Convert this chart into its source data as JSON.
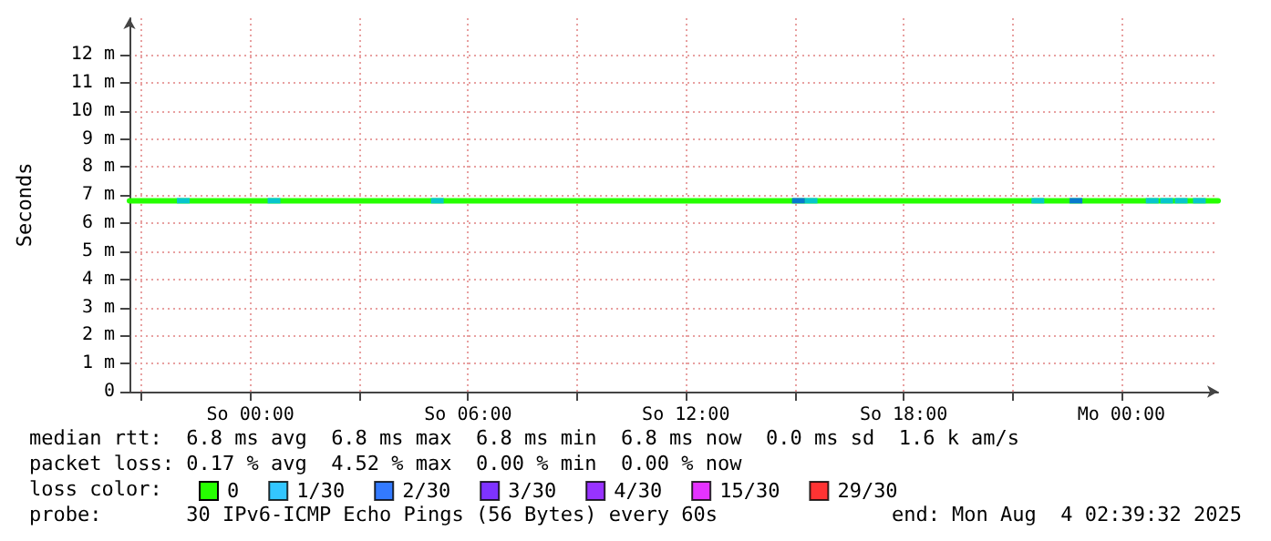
{
  "chart_data": {
    "type": "line",
    "ylabel": "Seconds",
    "annotations": [
      "median rtt:  6.8 ms avg  6.8 ms max  6.8 ms min  6.8 ms now  0.0 ms sd  1.6 k am/s",
      "packet loss: 0.17 % avg  4.52 % max  0.00 % min  0.00 % now",
      "loss color:",
      "probe:       30 IPv6-ICMP Echo Pings (56 Bytes) every 60s",
      "end: Mon Aug  4 02:39:32 2025"
    ],
    "xlim": [
      "2025-08-02T20:40",
      "2025-08-04T02:40"
    ],
    "xticks": [
      {
        "value": "2025-08-02T21:00",
        "label": null
      },
      {
        "value": "2025-08-03T00:00",
        "label": "So 00:00"
      },
      {
        "value": "2025-08-03T03:00",
        "label": null
      },
      {
        "value": "2025-08-03T06:00",
        "label": "So 06:00"
      },
      {
        "value": "2025-08-03T09:00",
        "label": null
      },
      {
        "value": "2025-08-03T12:00",
        "label": "So 12:00"
      },
      {
        "value": "2025-08-03T15:00",
        "label": null
      },
      {
        "value": "2025-08-03T18:00",
        "label": "So 18:00"
      },
      {
        "value": "2025-08-03T21:00",
        "label": null
      },
      {
        "value": "2025-08-04T00:00",
        "label": "Mo 00:00"
      }
    ],
    "ylim": [
      0,
      13.3
    ],
    "yticks": [
      0,
      {
        "value": 1,
        "label": "1 m"
      },
      {
        "value": 2,
        "label": "2 m"
      },
      {
        "value": 3,
        "label": "3 m"
      },
      {
        "value": 4,
        "label": "4 m"
      },
      {
        "value": 5,
        "label": "5 m"
      },
      {
        "value": 6,
        "label": "6 m"
      },
      {
        "value": 7,
        "label": "7 m"
      },
      {
        "value": 8,
        "label": "8 m"
      },
      {
        "value": 9,
        "label": "9 m"
      },
      {
        "value": 10,
        "label": "10 m"
      },
      {
        "value": 11,
        "label": "11 m"
      },
      {
        "value": 12,
        "label": "12 m"
      }
    ],
    "grid": true,
    "legend": "bottom",
    "series": [
      {
        "name": "0",
        "color": "#26ff00",
        "x": [
          "2025-08-02T20:40",
          "2025-08-04T02:40"
        ],
        "values": [
          6.8,
          6.8
        ]
      },
      {
        "name": "1/30",
        "type": "scatter",
        "color": "#00b8ff",
        "x": [
          "2025-08-02T22:09",
          "2025-08-03T00:39",
          "2025-08-03T05:09",
          "2025-08-03T15:27",
          "2025-08-03T21:42",
          "2025-08-04T00:51",
          "2025-08-04T01:15",
          "2025-08-04T01:39",
          "2025-08-04T02:09"
        ],
        "values": [
          6.8,
          6.8,
          6.8,
          6.8,
          6.8,
          6.8,
          6.8,
          6.8,
          6.8
        ]
      },
      {
        "name": "2/30",
        "type": "scatter",
        "color": "#0059ff",
        "x": [
          "2025-08-03T15:06",
          "2025-08-03T22:45"
        ],
        "values": [
          6.8,
          6.8
        ]
      },
      {
        "name": "3/30",
        "type": "scatter",
        "color": "#5e00ff"
      },
      {
        "name": "4/30",
        "type": "scatter",
        "color": "#7e00ff"
      },
      {
        "name": "15/30",
        "type": "scatter",
        "color": "#dd00ff"
      },
      {
        "name": "29/30",
        "type": "scatter",
        "color": "#ff0000"
      }
    ]
  }
}
